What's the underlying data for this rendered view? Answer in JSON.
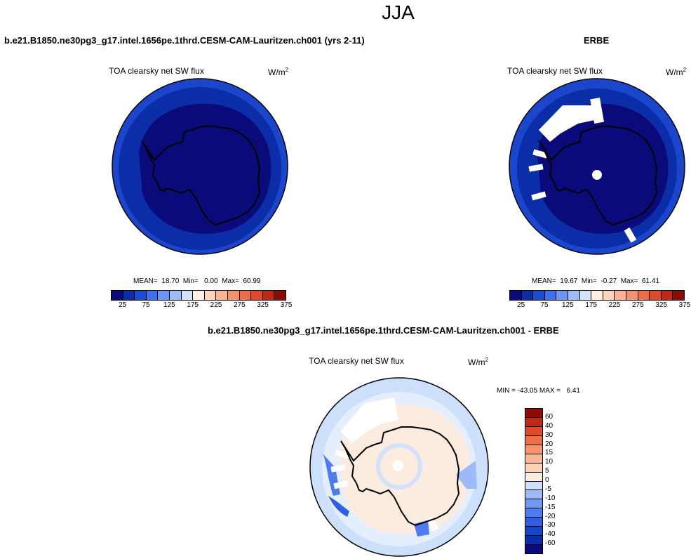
{
  "season": "JJA",
  "top_left": {
    "title": "b.e21.B1850.ne30pg3_g17.intel.1656pe.1thrd.CESM-CAM-Lauritzen.ch001 (yrs 2-11)",
    "subtitle": "TOA clearsky net SW flux",
    "units_base": "W/m",
    "units_exp": "2",
    "stats": "MEAN=  18.70  Min=   0.00  Max=  60.99"
  },
  "top_right": {
    "title": "ERBE",
    "subtitle": "TOA clearsky net SW flux",
    "units_base": "W/m",
    "units_exp": "2",
    "stats": "MEAN=  19.67  Min=  -0.27  Max=  61.41"
  },
  "bottom": {
    "title": "b.e21.B1850.ne30pg3_g17.intel.1656pe.1thrd.CESM-CAM-Lauritzen.ch001 - ERBE",
    "subtitle": "TOA clearsky net SW flux",
    "units_base": "W/m",
    "units_exp": "2",
    "minmax": "MIN = -43.05 MAX =   6.41"
  },
  "colorbar_abs": {
    "colors": [
      "#0a0a7a",
      "#0b2ea8",
      "#1a4cd0",
      "#3f70ee",
      "#6d95f5",
      "#9fbcf7",
      "#d2e2fb",
      "#fff0e2",
      "#fdd5bd",
      "#fab493",
      "#f7906b",
      "#f06b47",
      "#e04a28",
      "#bf2a14",
      "#8b0b05"
    ],
    "labels": [
      "25",
      "75",
      "125",
      "175",
      "225",
      "275",
      "325",
      "375"
    ]
  },
  "colorbar_diff": {
    "colors": [
      "#0a0a7a",
      "#0b2ea8",
      "#1845c8",
      "#2f5fe4",
      "#4e7bf0",
      "#7099f5",
      "#9cbaf7",
      "#cde0fb",
      "#fcecdf",
      "#fdd3b8",
      "#fbb790",
      "#f89468",
      "#f06d45",
      "#e04a28",
      "#bf2a14",
      "#8b0b05"
    ],
    "labels": [
      "60",
      "40",
      "30",
      "20",
      "15",
      "10",
      "5",
      "0",
      "-5",
      "-10",
      "-15",
      "-20",
      "-30",
      "-40",
      "-60"
    ]
  },
  "chart_data": [
    {
      "type": "heatmap",
      "projection": "south-polar stereographic",
      "title": "b.e21.B1850.ne30pg3_g17.intel.1656pe.1thrd.CESM-CAM-Lauritzen.ch001 (yrs 2-11)",
      "subtitle": "TOA clearsky net SW flux",
      "units": "W/m2",
      "mean": 18.7,
      "min": 0.0,
      "max": 60.99,
      "levels": [
        25,
        50,
        75,
        100,
        125,
        150,
        175,
        200,
        225,
        250,
        275,
        300,
        325,
        350,
        375
      ]
    },
    {
      "type": "heatmap",
      "projection": "south-polar stereographic",
      "title": "ERBE",
      "subtitle": "TOA clearsky net SW flux",
      "units": "W/m2",
      "mean": 19.67,
      "min": -0.27,
      "max": 61.41,
      "levels": [
        25,
        50,
        75,
        100,
        125,
        150,
        175,
        200,
        225,
        250,
        275,
        300,
        325,
        350,
        375
      ]
    },
    {
      "type": "heatmap",
      "projection": "south-polar stereographic",
      "title": "b.e21.B1850.ne30pg3_g17.intel.1656pe.1thrd.CESM-CAM-Lauritzen.ch001 - ERBE",
      "subtitle": "TOA clearsky net SW flux",
      "units": "W/m2",
      "min": -43.05,
      "max": 6.41,
      "levels": [
        -60,
        -40,
        -30,
        -20,
        -15,
        -10,
        -5,
        0,
        5,
        10,
        15,
        20,
        30,
        40,
        60
      ]
    }
  ]
}
